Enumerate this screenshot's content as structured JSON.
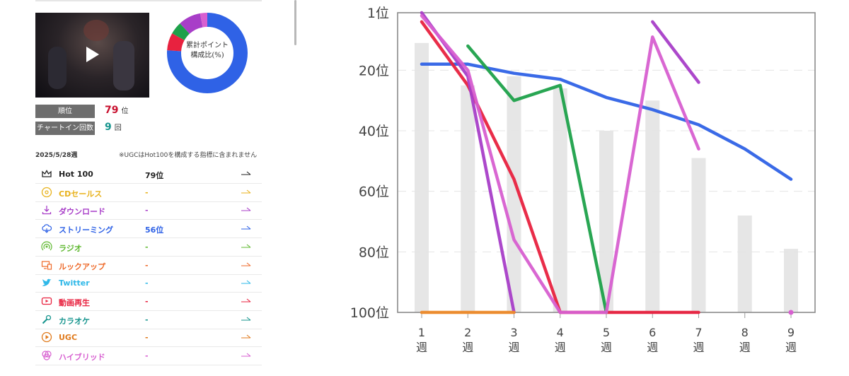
{
  "sidebar": {
    "rank_label": "順位",
    "rank_value": "79",
    "rank_unit": "位",
    "chartin_label": "チャートイン回数",
    "chartin_value": "9",
    "chartin_unit": "回",
    "week": "2025/5/28週",
    "note": "※UGCはHot100を構成する指標に含まれません",
    "donut_label_line1": "累計ポイント",
    "donut_label_line2": "構成比(%)",
    "donut_segments": [
      {
        "color": "#2f62e6",
        "value": 76
      },
      {
        "color": "#e8223f",
        "value": 7
      },
      {
        "color": "#1ea14a",
        "value": 5
      },
      {
        "color": "#a83ec8",
        "value": 9
      },
      {
        "color": "#d75fd0",
        "value": 3
      }
    ],
    "metrics": [
      {
        "name": "Hot 100",
        "rank": "79位",
        "color": "#222222",
        "icon": "crown-icon"
      },
      {
        "name": "CDセールス",
        "rank": "-",
        "color": "#e8b21c",
        "icon": "cd-icon"
      },
      {
        "name": "ダウンロード",
        "rank": "-",
        "color": "#a83ec8",
        "icon": "download-icon"
      },
      {
        "name": "ストリーミング",
        "rank": "56位",
        "color": "#2f62e6",
        "icon": "cloud-icon"
      },
      {
        "name": "ラジオ",
        "rank": "-",
        "color": "#5fb830",
        "icon": "radio-icon"
      },
      {
        "name": "ルックアップ",
        "rank": "-",
        "color": "#ee6a2a",
        "icon": "lookup-icon"
      },
      {
        "name": "Twitter",
        "rank": "-",
        "color": "#2fb8e8",
        "icon": "twitter-icon"
      },
      {
        "name": "動画再生",
        "rank": "-",
        "color": "#e8223f",
        "icon": "video-play-icon"
      },
      {
        "name": "カラオケ",
        "rank": "-",
        "color": "#17958e",
        "icon": "microphone-icon"
      },
      {
        "name": "UGC",
        "rank": "-",
        "color": "#e07a1c",
        "icon": "ugc-icon"
      },
      {
        "name": "ハイブリッド",
        "rank": "-",
        "color": "#d75fd0",
        "icon": "hybrid-icon"
      }
    ]
  },
  "chart_data": {
    "type": "line",
    "ylabels": [
      "1位",
      "20位",
      "40位",
      "60位",
      "80位",
      "100位"
    ],
    "yticks": [
      1,
      20,
      40,
      60,
      80,
      100
    ],
    "ylim": [
      1,
      100
    ],
    "y_inverted": true,
    "xlabels": [
      [
        "1",
        "週"
      ],
      [
        "2",
        "週"
      ],
      [
        "3",
        "週"
      ],
      [
        "4",
        "週"
      ],
      [
        "5",
        "週"
      ],
      [
        "6",
        "週"
      ],
      [
        "7",
        "週"
      ],
      [
        "8",
        "週"
      ],
      [
        "9",
        "週"
      ]
    ],
    "x": [
      1,
      2,
      3,
      4,
      5,
      6,
      7,
      8,
      9
    ],
    "bars": {
      "color": "#e6e6e6",
      "values": [
        11,
        25,
        22,
        26,
        40,
        30,
        49,
        68,
        79
      ]
    },
    "series": [
      {
        "color": "#2f62e6",
        "points": [
          [
            1,
            18
          ],
          [
            2,
            18
          ],
          [
            3,
            21
          ],
          [
            4,
            23
          ],
          [
            5,
            29
          ],
          [
            6,
            33
          ],
          [
            7,
            38
          ],
          [
            8,
            46
          ],
          [
            9,
            56
          ]
        ]
      },
      {
        "color": "#e8223f",
        "points": [
          [
            1,
            4
          ],
          [
            2,
            25
          ],
          [
            3,
            56
          ],
          [
            4,
            100
          ],
          [
            5,
            100
          ],
          [
            6,
            100
          ],
          [
            7,
            100
          ]
        ]
      },
      {
        "color": "#1ea14a",
        "points": [
          [
            2,
            12
          ],
          [
            3,
            30
          ],
          [
            4,
            25
          ],
          [
            5,
            100
          ]
        ]
      },
      {
        "color": "#a83ec8",
        "points": [
          [
            1,
            1
          ],
          [
            2,
            22
          ],
          [
            3,
            100
          ]
        ]
      },
      {
        "color": "#a83ec8",
        "points": [
          [
            6,
            4
          ],
          [
            7,
            24
          ]
        ]
      },
      {
        "color": "#d75fd0",
        "points": [
          [
            1,
            2
          ],
          [
            2,
            20
          ],
          [
            3,
            76
          ],
          [
            4,
            100
          ],
          [
            5,
            100
          ],
          [
            6,
            9
          ],
          [
            7,
            46
          ]
        ]
      },
      {
        "color": "#ee8a2a",
        "points": [
          [
            1,
            100
          ],
          [
            3,
            100
          ]
        ]
      },
      {
        "color": "#d75fd0",
        "points": [
          [
            9,
            100
          ]
        ]
      }
    ]
  }
}
